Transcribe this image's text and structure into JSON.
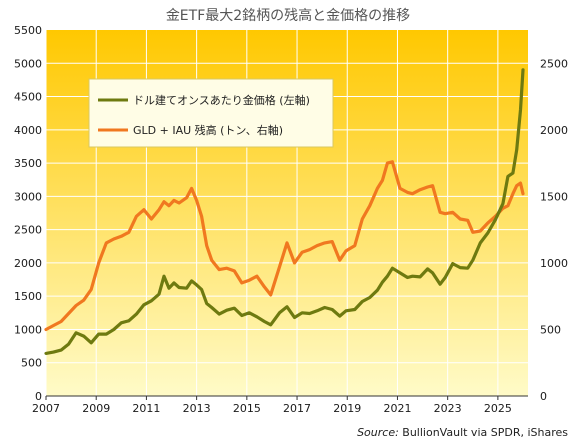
{
  "chart_data": {
    "type": "line",
    "title": "金ETF最大2銘柄の残高と金価格の推移",
    "source_label": "Source:",
    "source_text": " BullionVault  via SPDR, iShares",
    "x_ticks": [
      "2007",
      "2009",
      "2011",
      "2013",
      "2015",
      "2017",
      "2019",
      "2021",
      "2023",
      "2025"
    ],
    "xlim": [
      2007,
      2026.2
    ],
    "y_left_ticks": [
      "0",
      "500",
      "1000",
      "1500",
      "2000",
      "2500",
      "3000",
      "3500",
      "4000",
      "4500",
      "5000",
      "5500"
    ],
    "y_left_lim": [
      0,
      5500
    ],
    "y_right_ticks": [
      "0",
      "500",
      "1000",
      "1500",
      "2000",
      "2500"
    ],
    "y_right_lim": [
      0,
      2750
    ],
    "grid": true,
    "legend_position": "upper-left",
    "colors": {
      "background_top": "#ffc800",
      "background_bottom": "#fffbc8",
      "gold_price": "#6e7a10",
      "etf_holdings": "#f07820",
      "grid": "#ffffff"
    },
    "series": [
      {
        "name": "ドル建てオンスあたり金価格 (左軸)",
        "axis": "left",
        "x": [
          2007.0,
          2007.3,
          2007.6,
          2007.9,
          2008.2,
          2008.5,
          2008.8,
          2009.1,
          2009.4,
          2009.7,
          2010.0,
          2010.3,
          2010.6,
          2010.9,
          2011.2,
          2011.5,
          2011.7,
          2011.9,
          2012.1,
          2012.3,
          2012.6,
          2012.8,
          2013.0,
          2013.2,
          2013.4,
          2013.6,
          2013.9,
          2014.2,
          2014.5,
          2014.8,
          2015.1,
          2015.4,
          2015.7,
          2015.95,
          2016.3,
          2016.6,
          2016.9,
          2017.2,
          2017.5,
          2017.8,
          2018.1,
          2018.4,
          2018.7,
          2018.95,
          2019.3,
          2019.6,
          2019.9,
          2020.2,
          2020.4,
          2020.6,
          2020.8,
          2021.1,
          2021.4,
          2021.6,
          2021.9,
          2022.2,
          2022.4,
          2022.7,
          2022.9,
          2023.2,
          2023.5,
          2023.8,
          2024.0,
          2024.3,
          2024.6,
          2024.9,
          2025.2,
          2025.4,
          2025.6,
          2025.75,
          2025.9,
          2026.0
        ],
        "values": [
          640,
          660,
          690,
          780,
          950,
          900,
          800,
          930,
          930,
          1000,
          1100,
          1130,
          1230,
          1370,
          1430,
          1530,
          1800,
          1620,
          1700,
          1630,
          1620,
          1730,
          1670,
          1600,
          1390,
          1330,
          1230,
          1290,
          1320,
          1210,
          1250,
          1190,
          1120,
          1070,
          1250,
          1340,
          1180,
          1250,
          1240,
          1280,
          1330,
          1300,
          1200,
          1280,
          1300,
          1420,
          1480,
          1590,
          1710,
          1800,
          1920,
          1850,
          1780,
          1800,
          1790,
          1910,
          1850,
          1680,
          1780,
          1990,
          1930,
          1920,
          2040,
          2300,
          2450,
          2650,
          2890,
          3300,
          3350,
          3700,
          4300,
          4900
        ]
      },
      {
        "name": "GLD + IAU 残高 (トン、右軸)",
        "axis": "right",
        "x": [
          2007.0,
          2007.3,
          2007.6,
          2007.9,
          2008.2,
          2008.5,
          2008.8,
          2009.1,
          2009.4,
          2009.7,
          2010.0,
          2010.3,
          2010.6,
          2010.9,
          2011.2,
          2011.5,
          2011.7,
          2011.9,
          2012.1,
          2012.3,
          2012.6,
          2012.8,
          2013.0,
          2013.2,
          2013.4,
          2013.6,
          2013.9,
          2014.2,
          2014.5,
          2014.8,
          2015.1,
          2015.4,
          2015.7,
          2015.95,
          2016.3,
          2016.6,
          2016.9,
          2017.2,
          2017.5,
          2017.8,
          2018.1,
          2018.4,
          2018.7,
          2018.95,
          2019.3,
          2019.6,
          2019.9,
          2020.2,
          2020.4,
          2020.6,
          2020.8,
          2021.1,
          2021.4,
          2021.6,
          2021.9,
          2022.2,
          2022.4,
          2022.7,
          2022.9,
          2023.2,
          2023.5,
          2023.8,
          2024.0,
          2024.3,
          2024.6,
          2024.9,
          2025.2,
          2025.4,
          2025.6,
          2025.75,
          2025.9,
          2026.0
        ],
        "values": [
          500,
          530,
          560,
          620,
          680,
          720,
          800,
          1000,
          1150,
          1180,
          1200,
          1230,
          1350,
          1400,
          1330,
          1400,
          1460,
          1430,
          1470,
          1450,
          1490,
          1560,
          1470,
          1350,
          1130,
          1020,
          950,
          960,
          940,
          850,
          870,
          900,
          820,
          760,
          970,
          1150,
          1000,
          1080,
          1100,
          1130,
          1150,
          1160,
          1020,
          1090,
          1130,
          1330,
          1430,
          1560,
          1620,
          1750,
          1760,
          1560,
          1530,
          1520,
          1550,
          1570,
          1580,
          1380,
          1370,
          1380,
          1330,
          1320,
          1230,
          1240,
          1300,
          1350,
          1410,
          1430,
          1520,
          1580,
          1600,
          1520
        ]
      }
    ]
  }
}
